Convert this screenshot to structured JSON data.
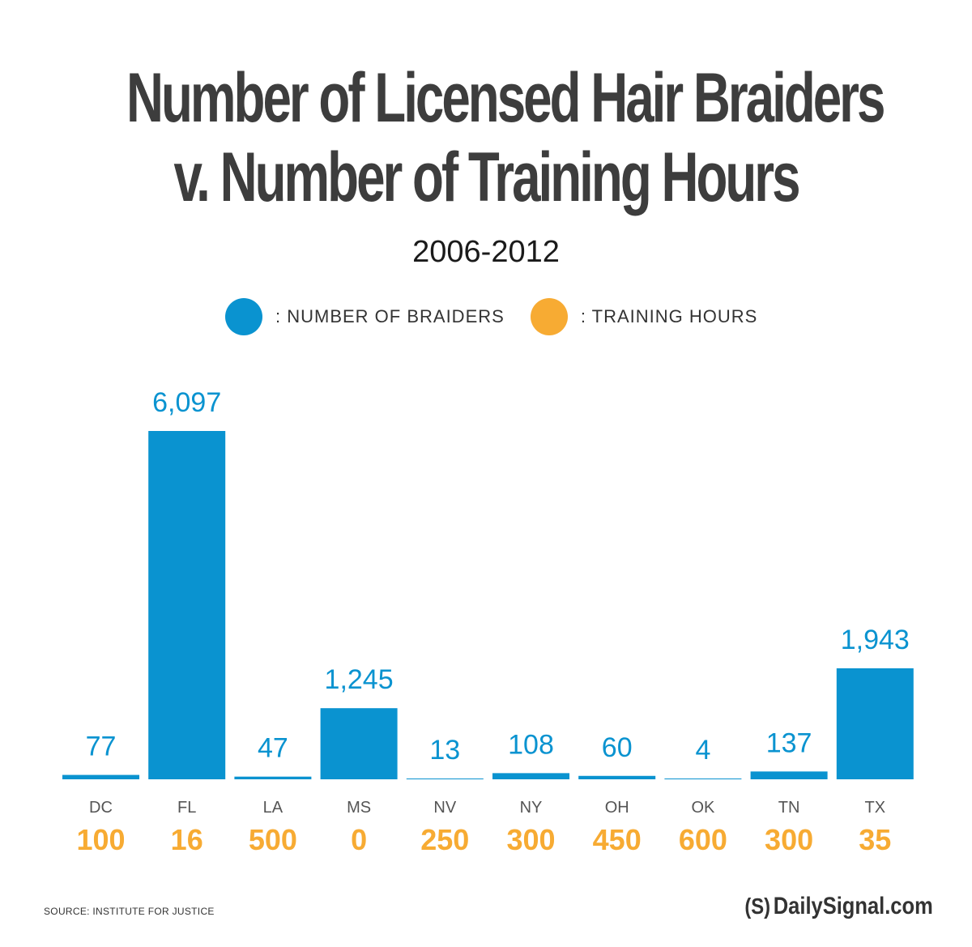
{
  "header": {
    "title_line1": "Number of Licensed Hair Braiders",
    "title_line2": "v. Number of Training Hours",
    "subtitle": "2006-2012"
  },
  "legend": {
    "braiders_label": ": NUMBER OF BRAIDERS",
    "hours_label": ": TRAINING HOURS"
  },
  "colors": {
    "braiders": "#0a93d0",
    "hours": "#f7ab33",
    "category_label": "#555555"
  },
  "chart_data": {
    "type": "bar",
    "categories": [
      "DC",
      "FL",
      "LA",
      "MS",
      "NV",
      "NY",
      "OH",
      "OK",
      "TN",
      "TX"
    ],
    "series": [
      {
        "name": "NUMBER OF BRAIDERS",
        "values": [
          77,
          6097,
          47,
          1245,
          13,
          108,
          60,
          4,
          137,
          1943
        ],
        "labels": [
          "77",
          "6,097",
          "47",
          "1,245",
          "13",
          "108",
          "60",
          "4",
          "137",
          "1,943"
        ]
      },
      {
        "name": "TRAINING HOURS",
        "values": [
          100,
          16,
          500,
          0,
          250,
          300,
          450,
          600,
          300,
          35
        ],
        "labels": [
          "100",
          "16",
          "500",
          "0",
          "250",
          "300",
          "450",
          "600",
          "300",
          "35"
        ]
      }
    ],
    "ylim": [
      0,
      6097
    ]
  },
  "footer": {
    "source": "SOURCE: INSTITUTE FOR JUSTICE",
    "brand_logo": "(S)",
    "brand_text": "DailySignal.com"
  }
}
